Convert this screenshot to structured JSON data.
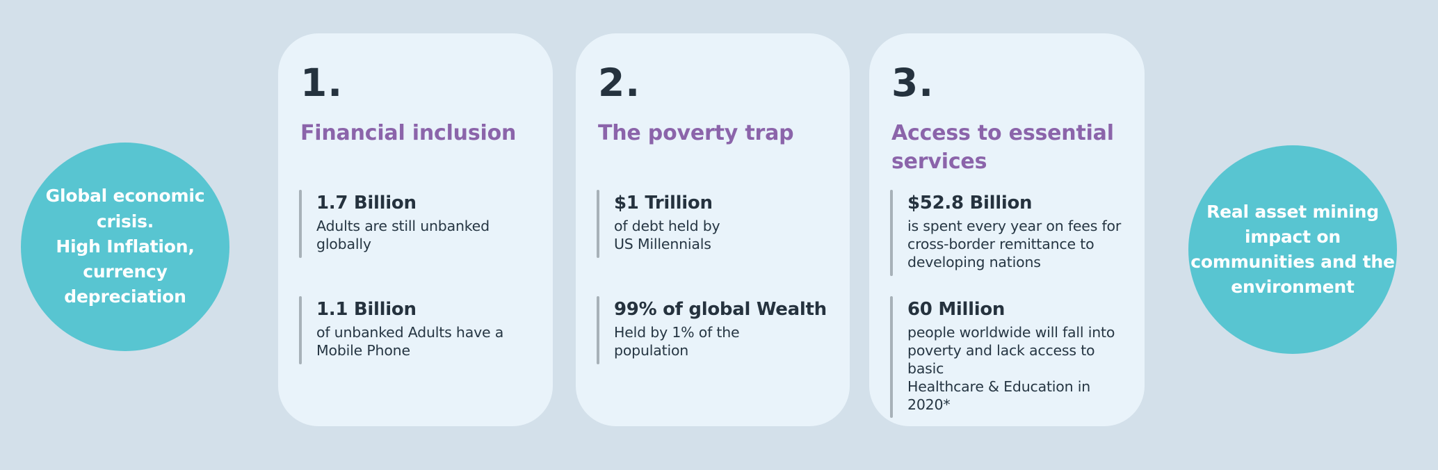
{
  "page": {
    "background_color": "#d3e0ea"
  },
  "colors": {
    "card_background": "#e9f3fa",
    "circle_teal": "#58c5d1",
    "heading_purple": "#8b64aa",
    "text_navy": "#25323e",
    "stat_bar_gray": "#a7b1b8",
    "circle_text_white": "#ffffff"
  },
  "left_circle": {
    "text": "Global economic\ncrisis.\nHigh Inflation,\ncurrency\ndepreciation"
  },
  "right_circle": {
    "text": "Real asset  mining\nimpact on\ncommunities and the\nenvironment"
  },
  "cards": [
    {
      "number": "1.",
      "title": "Financial inclusion",
      "stats": [
        {
          "value": "1.7 Billion",
          "description": "Adults are still unbanked\nglobally"
        },
        {
          "value": "1.1 Billion",
          "description": "of unbanked Adults have a\nMobile Phone"
        }
      ]
    },
    {
      "number": "2.",
      "title": "The poverty trap",
      "stats": [
        {
          "value": "$1 Trillion",
          "description": "of debt held by\nUS Millennials"
        },
        {
          "value": "99% of global Wealth",
          "description": "Held by 1% of the\npopulation"
        }
      ]
    },
    {
      "number": "3.",
      "title": "Access to essential\nservices",
      "stats": [
        {
          "value": "$52.8 Billion",
          "description": "is spent every year on fees for\ncross-border remittance to\ndeveloping nations"
        },
        {
          "value": "60 Million",
          "description": "people worldwide will fall into\npoverty and lack access to basic\nHealthcare & Education in 2020*"
        }
      ]
    }
  ]
}
